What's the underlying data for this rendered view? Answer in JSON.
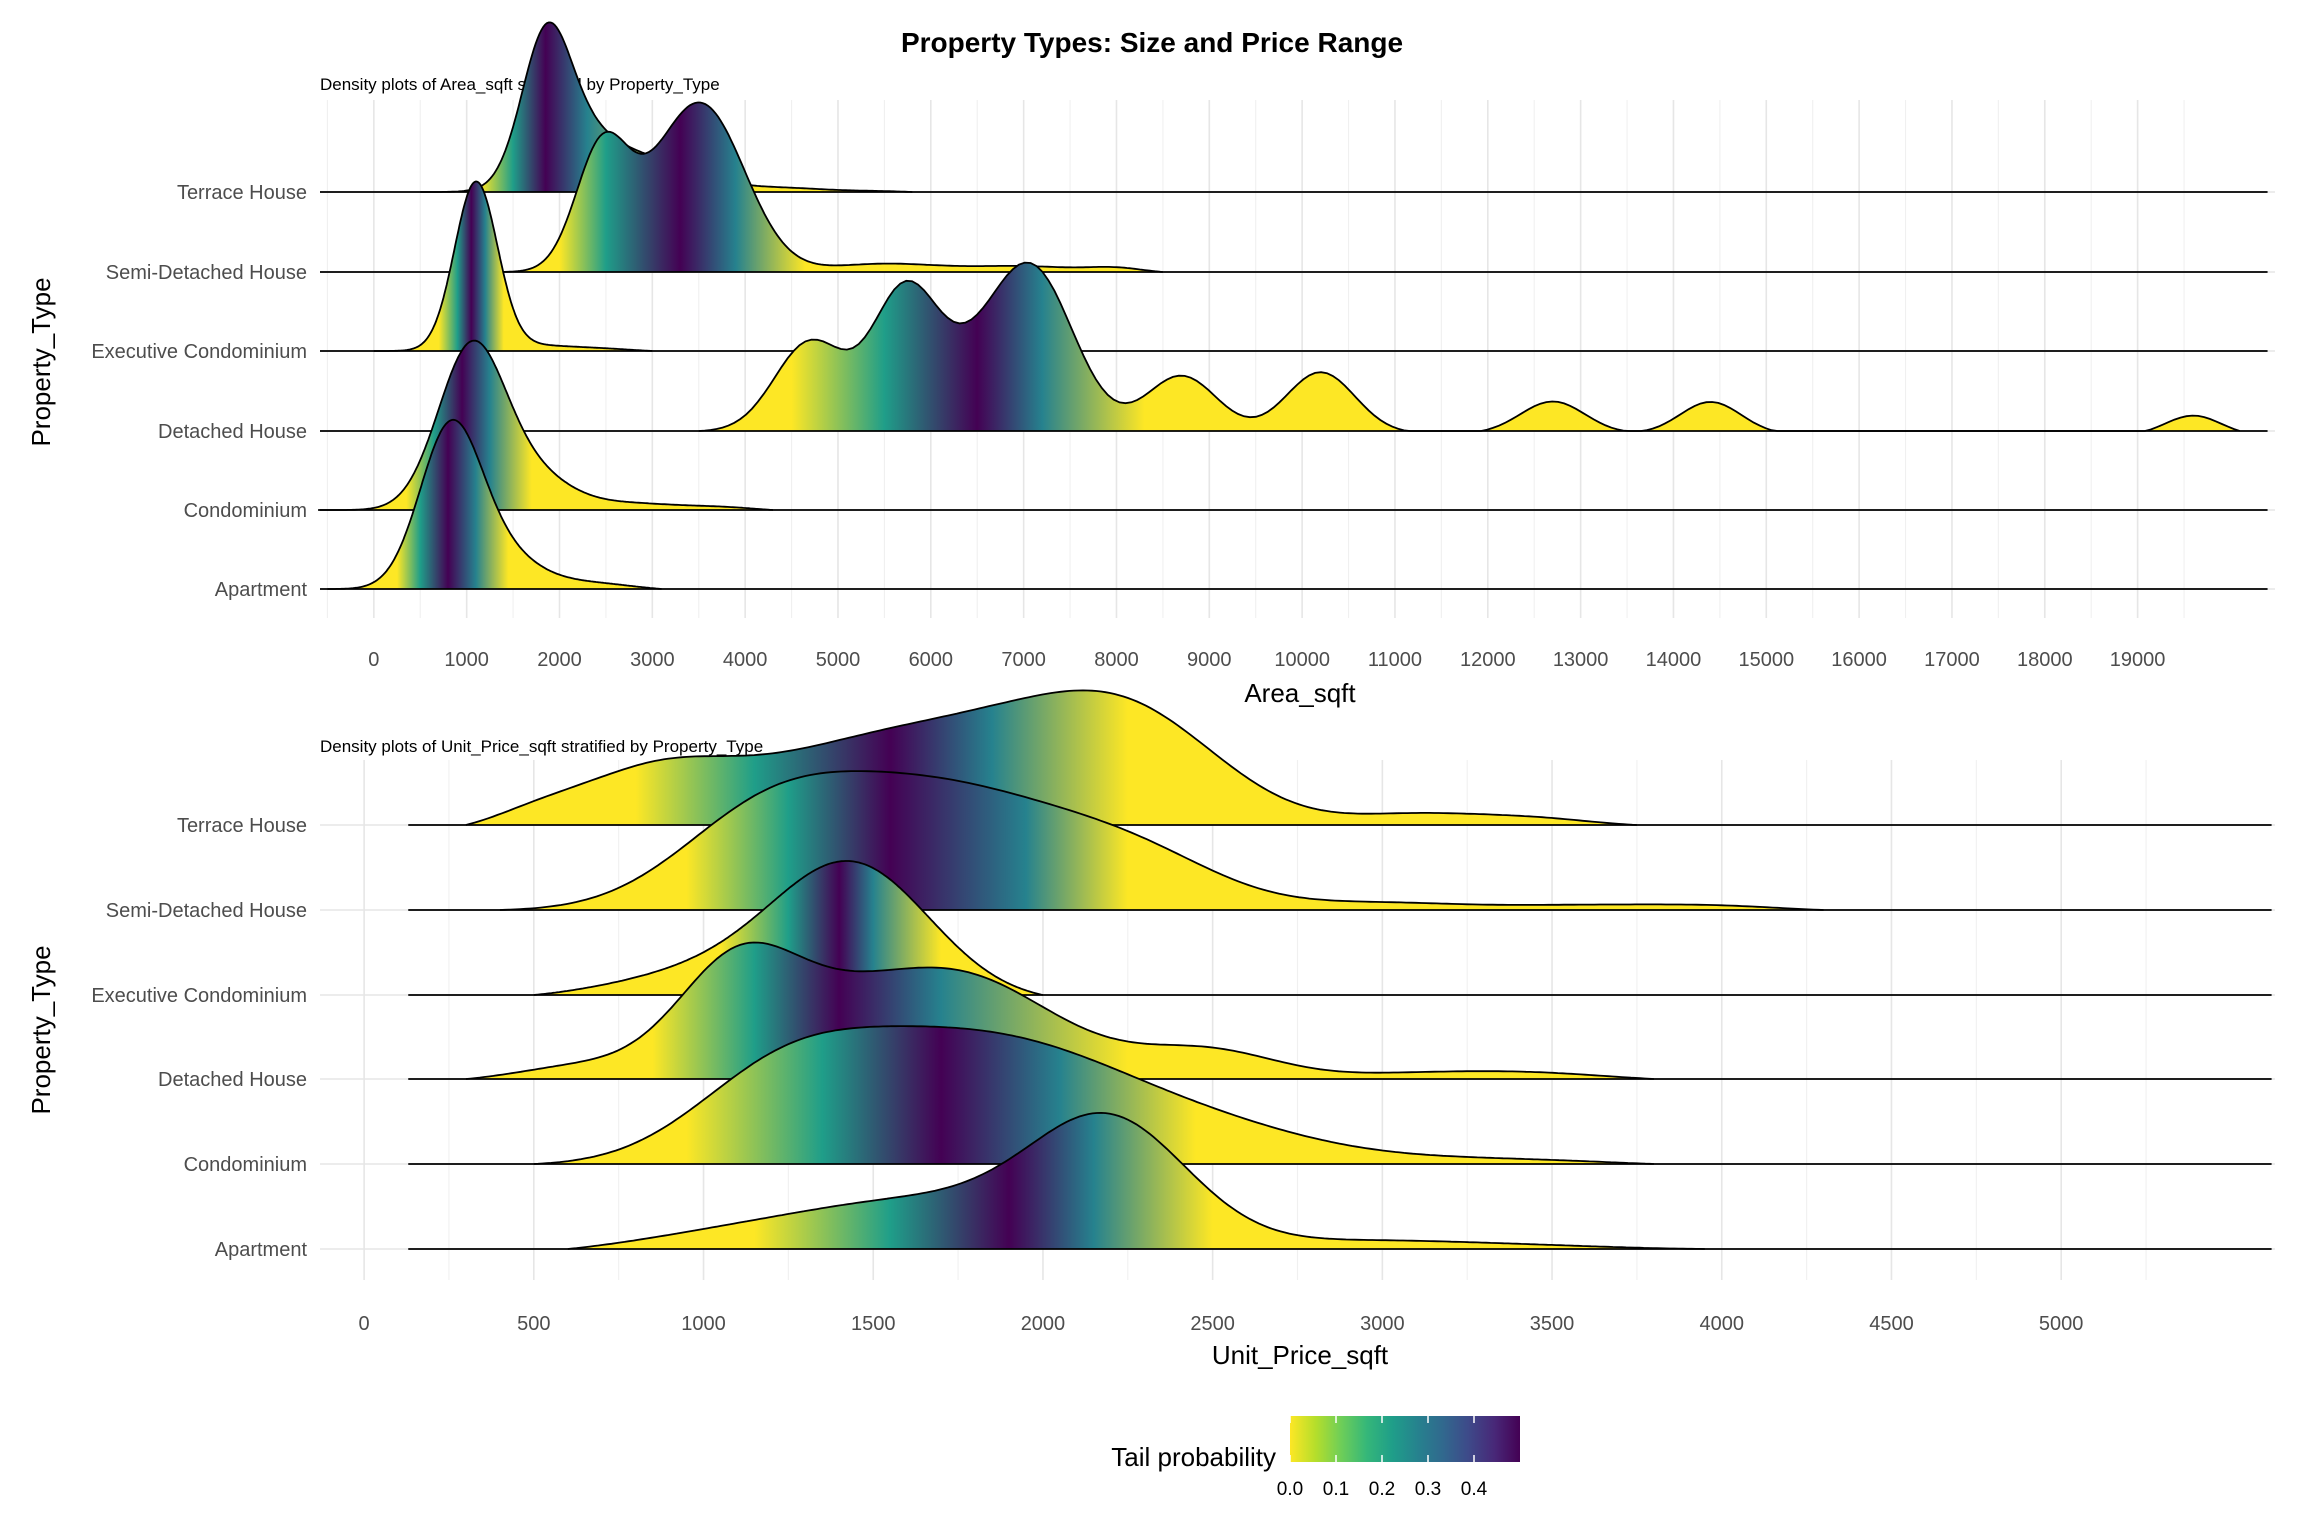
{
  "figure": {
    "title": "Property Types: Size and Price Range"
  },
  "legend": {
    "title": "Tail probability",
    "ticks": [
      "0.0",
      "0.1",
      "0.2",
      "0.3",
      "0.4"
    ],
    "tick_values": [
      0,
      0.1,
      0.2,
      0.3,
      0.4
    ],
    "range": [
      0,
      0.5
    ],
    "colors": [
      "#fde725",
      "#b5de2b",
      "#6ece58",
      "#35b779",
      "#1f9e89",
      "#26828e",
      "#31688e",
      "#3e4989",
      "#482878",
      "#440154"
    ]
  },
  "chart_data": [
    {
      "type": "ridgeline",
      "subtitle": "Density plots of Area_sqft stratified by Property_Type",
      "xlabel": "Area_sqft",
      "ylabel": "Property_Type",
      "xlim": [
        -580,
        20480
      ],
      "line_range": [
        -580,
        20400
      ],
      "xticks": [
        0,
        1000,
        2000,
        3000,
        4000,
        5000,
        6000,
        7000,
        8000,
        9000,
        10000,
        11000,
        12000,
        13000,
        14000,
        15000,
        16000,
        17000,
        18000,
        19000
      ],
      "xtick_labels": [
        "0",
        "1000",
        "2000",
        "3000",
        "4000",
        "5000",
        "6000",
        "7000",
        "8000",
        "9000",
        "10000",
        "11000",
        "12000",
        "13000",
        "14000",
        "15000",
        "16000",
        "17000",
        "18000",
        "19000"
      ],
      "grid": true,
      "fill": "viridis tail probability",
      "series": [
        {
          "name": "Terrace House",
          "peaks": [
            [
              1850,
              1.0,
              260
            ],
            [
              2200,
              0.45,
              420
            ],
            [
              3100,
              0.22,
              480
            ],
            [
              4400,
              0.04,
              500
            ],
            [
              5500,
              0.015,
              400
            ]
          ],
          "range": [
            500,
            5800
          ],
          "tail": [
            1150,
            1500,
            1850,
            2300,
            3400
          ]
        },
        {
          "name": "Semi-Detached House",
          "peaks": [
            [
              2450,
              0.5,
              280
            ],
            [
              3600,
              0.58,
              450
            ],
            [
              3150,
              0.25,
              500
            ],
            [
              5500,
              0.04,
              600
            ],
            [
              7000,
              0.03,
              600
            ],
            [
              8000,
              0.02,
              300
            ]
          ],
          "range": [
            1300,
            8500
          ],
          "tail": [
            2000,
            2500,
            3300,
            3900,
            4650
          ]
        },
        {
          "name": "Executive Condominium",
          "peaks": [
            [
              1100,
              1.0,
              230
            ],
            [
              1600,
              0.04,
              500
            ],
            [
              2500,
              0.015,
              400
            ]
          ],
          "range": [
            0,
            3000
          ],
          "tail": [
            700,
            900,
            1050,
            1200,
            1400
          ]
        },
        {
          "name": "Detached House",
          "peaks": [
            [
              4700,
              0.22,
              380
            ],
            [
              5700,
              0.3,
              350
            ],
            [
              7100,
              0.38,
              450
            ],
            [
              8700,
              0.14,
              380
            ],
            [
              10200,
              0.15,
              370
            ],
            [
              12700,
              0.08,
              350
            ],
            [
              14400,
              0.08,
              330
            ],
            [
              19600,
              0.05,
              300
            ],
            [
              6300,
              0.12,
              500
            ]
          ],
          "range": [
            3500,
            20100
          ],
          "tail": [
            4500,
            5500,
            6500,
            7200,
            8300
          ]
        },
        {
          "name": "Condominium",
          "peaks": [
            [
              1050,
              1.0,
              360
            ],
            [
              1700,
              0.2,
              400
            ],
            [
              2700,
              0.05,
              600
            ],
            [
              3800,
              0.02,
              400
            ]
          ],
          "range": [
            -600,
            4300
          ],
          "tail": [
            350,
            650,
            950,
            1250,
            1700
          ]
        },
        {
          "name": "Apartment",
          "peaks": [
            [
              820,
              1.0,
              330
            ],
            [
              1350,
              0.22,
              400
            ],
            [
              2300,
              0.05,
              500
            ]
          ],
          "range": [
            -500,
            3100
          ],
          "tail": [
            250,
            500,
            800,
            1100,
            1450
          ]
        }
      ]
    },
    {
      "type": "ridgeline",
      "subtitle": "Density plots of Unit_Price_sqft stratified by Property_Type",
      "xlabel": "Unit_Price_sqft",
      "ylabel": "Property_Type",
      "xlim": [
        -130,
        5630
      ],
      "line_range": [
        130,
        5620
      ],
      "xticks": [
        0,
        500,
        1000,
        1500,
        2000,
        2500,
        3000,
        3500,
        4000,
        4500,
        5000
      ],
      "xtick_labels": [
        "0",
        "500",
        "1000",
        "1500",
        "2000",
        "2500",
        "3000",
        "3500",
        "4000",
        "4500",
        "5000"
      ],
      "grid": true,
      "fill": "viridis tail probability",
      "series": [
        {
          "name": "Terrace House",
          "peaks": [
            [
              850,
              0.48,
              230
            ],
            [
              1350,
              0.45,
              300
            ],
            [
              1950,
              0.9,
              380
            ],
            [
              2300,
              0.48,
              250
            ],
            [
              3100,
              0.11,
              200
            ],
            [
              3450,
              0.07,
              180
            ],
            [
              500,
              0.12,
              150
            ]
          ],
          "range": [
            300,
            3750
          ],
          "tail": [
            800,
            1150,
            1550,
            1850,
            2250
          ]
        },
        {
          "name": "Semi-Detached House",
          "peaks": [
            [
              1150,
              0.6,
              250
            ],
            [
              1500,
              0.72,
              300
            ],
            [
              1900,
              0.62,
              300
            ],
            [
              2300,
              0.35,
              250
            ],
            [
              3000,
              0.07,
              250
            ],
            [
              3600,
              0.05,
              250
            ],
            [
              4000,
              0.04,
              200
            ]
          ],
          "range": [
            400,
            4300
          ],
          "tail": [
            950,
            1250,
            1550,
            1950,
            2250
          ]
        },
        {
          "name": "Executive Condominium",
          "peaks": [
            [
              1440,
              1.0,
              230
            ],
            [
              1050,
              0.18,
              230
            ],
            [
              750,
              0.05,
              200
            ]
          ],
          "range": [
            500,
            2000
          ],
          "tail": [
            1050,
            1250,
            1400,
            1500,
            1700
          ]
        },
        {
          "name": "Detached House",
          "peaks": [
            [
              1100,
              0.85,
              180
            ],
            [
              1750,
              0.72,
              260
            ],
            [
              1400,
              0.32,
              200
            ],
            [
              2500,
              0.2,
              200
            ],
            [
              2150,
              0.1,
              250
            ],
            [
              3050,
              0.05,
              250
            ],
            [
              3450,
              0.06,
              250
            ],
            [
              650,
              0.12,
              200
            ]
          ],
          "range": [
            300,
            3800
          ],
          "tail": [
            850,
            1150,
            1400,
            1700,
            2250
          ]
        },
        {
          "name": "Condominium",
          "peaks": [
            [
              1200,
              0.55,
              250
            ],
            [
              1600,
              0.8,
              320
            ],
            [
              2050,
              0.58,
              300
            ],
            [
              2500,
              0.25,
              300
            ],
            [
              3000,
              0.06,
              400
            ],
            [
              3500,
              0.03,
              300
            ]
          ],
          "range": [
            500,
            3800
          ],
          "tail": [
            950,
            1350,
            1700,
            2050,
            2450
          ]
        },
        {
          "name": "Apartment",
          "peaks": [
            [
              2200,
              1.0,
              230
            ],
            [
              1650,
              0.45,
              400
            ],
            [
              1000,
              0.1,
              300
            ],
            [
              2900,
              0.08,
              300
            ],
            [
              3400,
              0.04,
              300
            ]
          ],
          "range": [
            600,
            3950
          ],
          "tail": [
            1150,
            1550,
            1900,
            2150,
            2500
          ]
        }
      ]
    }
  ]
}
